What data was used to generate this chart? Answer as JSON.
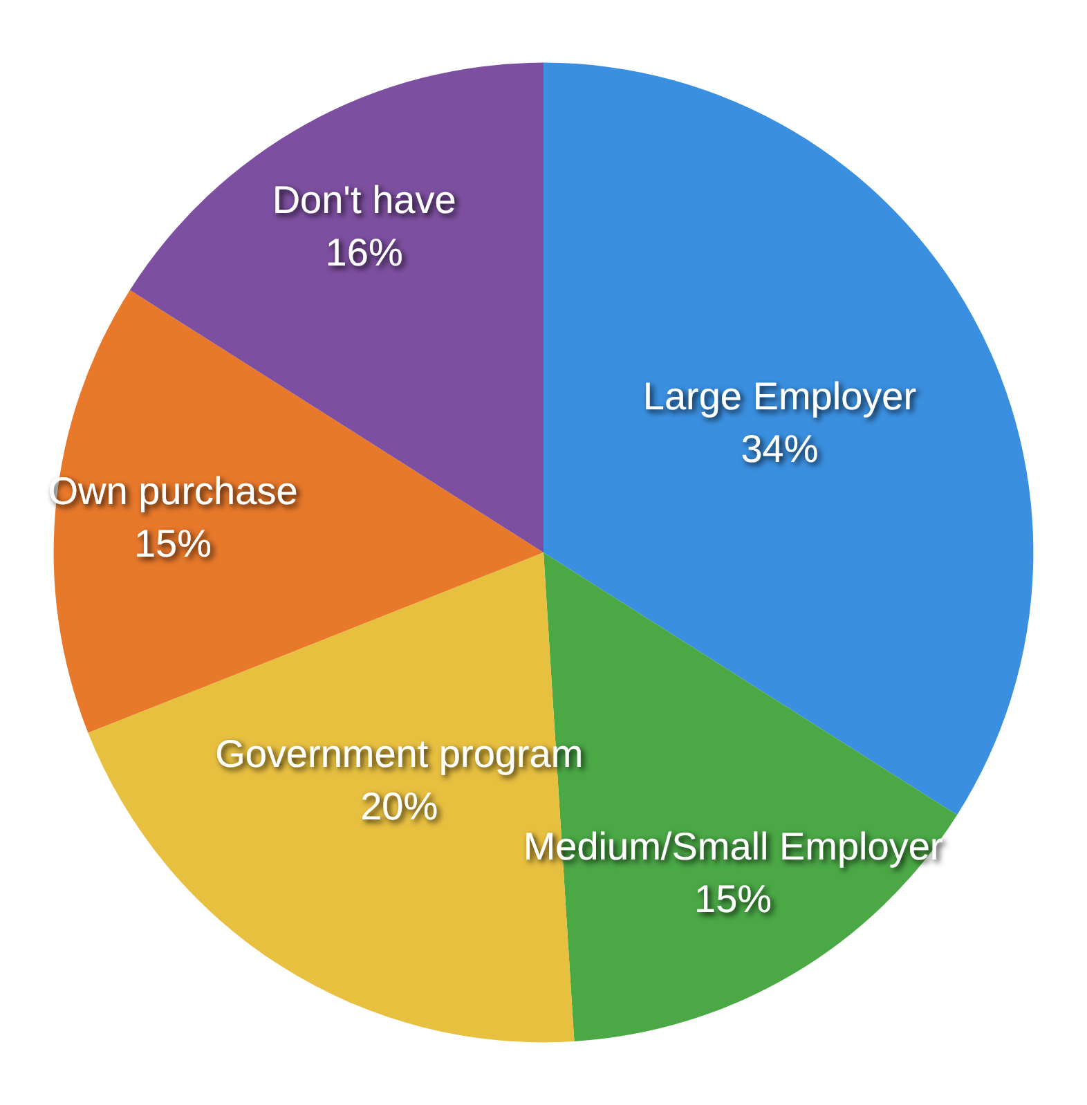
{
  "chart_data": {
    "type": "pie",
    "categories": [
      "Large Employer",
      "Medium/Small Employer",
      "Government program",
      "Own purchase",
      "Don't have"
    ],
    "values": [
      34,
      15,
      20,
      15,
      16
    ],
    "value_labels": [
      "34%",
      "15%",
      "20%",
      "15%",
      "16%"
    ],
    "colors": [
      "#3a8fe0",
      "#4aa845",
      "#e8c040",
      "#e8782a",
      "#7d4fa0"
    ],
    "legend": false
  }
}
